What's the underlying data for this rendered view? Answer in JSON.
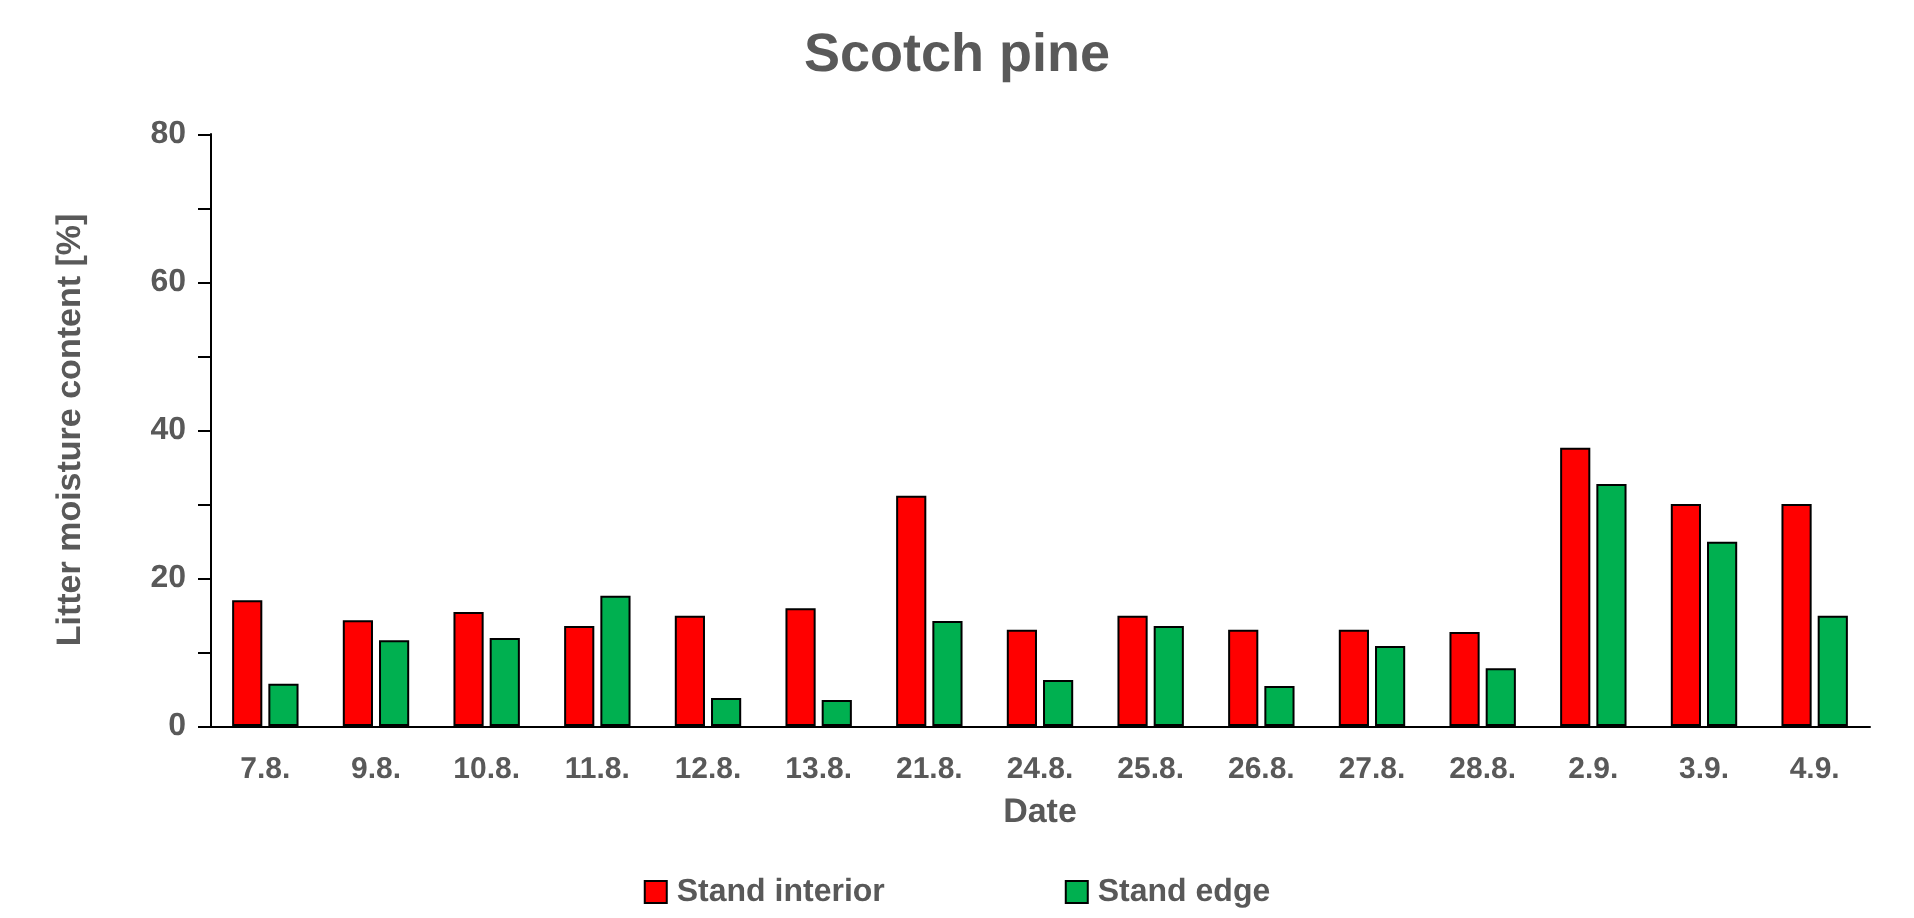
{
  "chart_data": {
    "type": "bar",
    "title": "Scotch pine",
    "xlabel": "Date",
    "ylabel": "Litter moisture content [%]",
    "categories": [
      "7.8.",
      "9.8.",
      "10.8.",
      "11.8.",
      "12.8.",
      "13.8.",
      "21.8.",
      "24.8.",
      "25.8.",
      "26.8.",
      "27.8.",
      "28.8.",
      "2.9.",
      "3.9.",
      "4.9."
    ],
    "series": [
      {
        "name": "Stand interior",
        "color": "#ff0000",
        "values": [
          17.0,
          14.3,
          15.4,
          13.5,
          14.9,
          15.9,
          31.1,
          13.0,
          14.9,
          13.0,
          13.0,
          12.7,
          37.6,
          30.0,
          30.0
        ]
      },
      {
        "name": "Stand edge",
        "color": "#00b050",
        "values": [
          5.7,
          11.6,
          11.9,
          17.6,
          3.8,
          3.5,
          14.2,
          6.2,
          13.5,
          5.4,
          10.8,
          7.8,
          32.7,
          24.9,
          14.9
        ]
      }
    ],
    "ylim": [
      0,
      80
    ],
    "yticks": [
      0,
      {
        "value": 10,
        "label": null
      },
      20,
      {
        "value": 30,
        "label": null
      },
      40,
      {
        "value": 50,
        "label": null
      },
      60,
      {
        "value": 70,
        "label": null
      },
      80
    ],
    "grid": false,
    "legend": "bottom"
  }
}
